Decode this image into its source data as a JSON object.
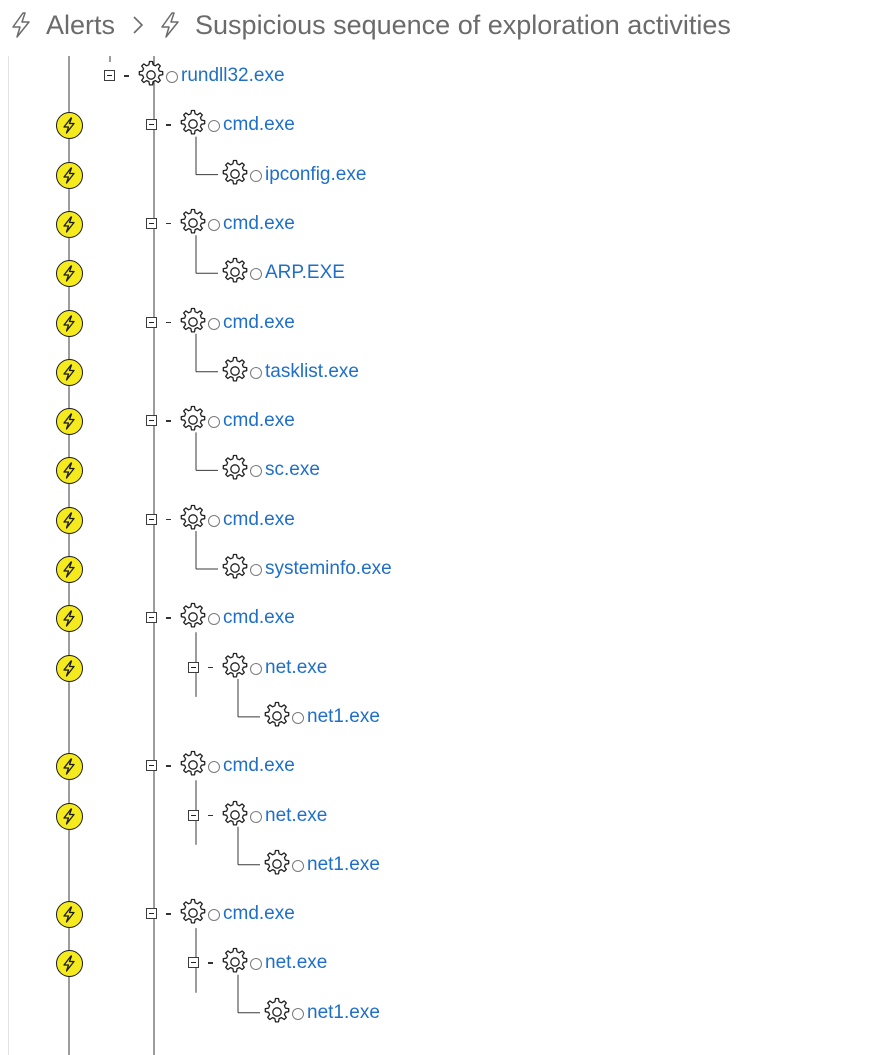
{
  "header": {
    "section": "Alerts",
    "title": "Suspicious sequence of exploration activities"
  },
  "colors": {
    "link": "#1f6fc8",
    "alert_fill": "#f5ea1e",
    "header_text": "#6b6b6b"
  },
  "icons": {
    "alert": "lightning-bolt-icon",
    "process": "gear-icon",
    "status": "circle-icon",
    "toggle": "collapse-box-icon",
    "separator": "chevron-right-icon"
  },
  "tree": {
    "nodes": [
      {
        "name": "rundll32.exe",
        "depth": 0,
        "expand": true,
        "alert": false
      },
      {
        "name": "cmd.exe",
        "depth": 1,
        "expand": true,
        "alert": true
      },
      {
        "name": "ipconfig.exe",
        "depth": 2,
        "expand": false,
        "alert": true
      },
      {
        "name": "cmd.exe",
        "depth": 1,
        "expand": true,
        "alert": true
      },
      {
        "name": "ARP.EXE",
        "depth": 2,
        "expand": false,
        "alert": true
      },
      {
        "name": "cmd.exe",
        "depth": 1,
        "expand": true,
        "alert": true
      },
      {
        "name": "tasklist.exe",
        "depth": 2,
        "expand": false,
        "alert": true
      },
      {
        "name": "cmd.exe",
        "depth": 1,
        "expand": true,
        "alert": true
      },
      {
        "name": "sc.exe",
        "depth": 2,
        "expand": false,
        "alert": true
      },
      {
        "name": "cmd.exe",
        "depth": 1,
        "expand": true,
        "alert": true
      },
      {
        "name": "systeminfo.exe",
        "depth": 2,
        "expand": false,
        "alert": true
      },
      {
        "name": "cmd.exe",
        "depth": 1,
        "expand": true,
        "alert": true
      },
      {
        "name": "net.exe",
        "depth": 2,
        "expand": true,
        "alert": true
      },
      {
        "name": "net1.exe",
        "depth": 3,
        "expand": false,
        "alert": false
      },
      {
        "name": "cmd.exe",
        "depth": 1,
        "expand": true,
        "alert": true
      },
      {
        "name": "net.exe",
        "depth": 2,
        "expand": true,
        "alert": true
      },
      {
        "name": "net1.exe",
        "depth": 3,
        "expand": false,
        "alert": false
      },
      {
        "name": "cmd.exe",
        "depth": 1,
        "expand": true,
        "alert": true
      },
      {
        "name": "net.exe",
        "depth": 2,
        "expand": true,
        "alert": true
      },
      {
        "name": "net1.exe",
        "depth": 3,
        "expand": false,
        "alert": false
      }
    ]
  }
}
